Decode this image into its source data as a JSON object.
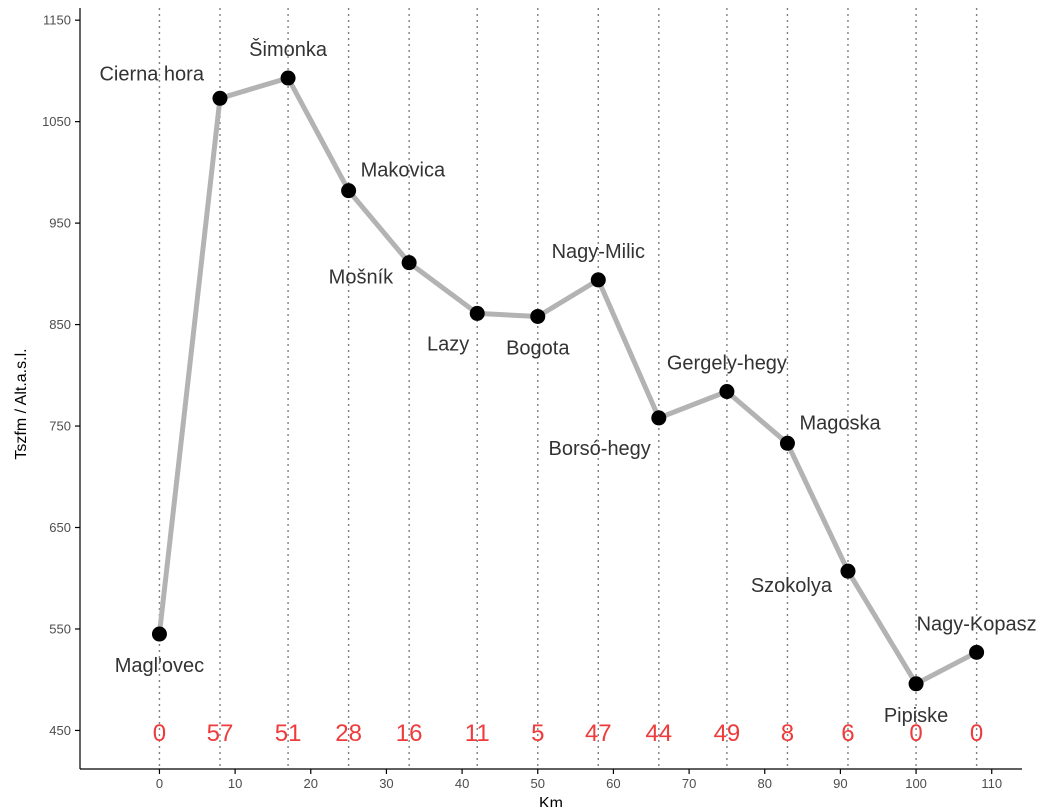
{
  "chart_data": {
    "type": "line",
    "xlabel": "Km",
    "ylabel": "Tszfm / Alt.a.s.l.",
    "xlim": [
      -10.5,
      114
    ],
    "ylim": [
      412,
      1162
    ],
    "x_ticks": [
      0,
      10,
      20,
      30,
      40,
      50,
      60,
      70,
      80,
      90,
      100,
      110
    ],
    "y_ticks": [
      450,
      550,
      650,
      750,
      850,
      950,
      1050,
      1150
    ],
    "grid": "vertical dotted lines at each point",
    "colors": {
      "line": "#b3b3b3",
      "point": "#000000",
      "count": "#ee3b3b",
      "label": "#333333"
    },
    "points": [
      {
        "label": "Magl'ovec",
        "x": 0,
        "y": 545,
        "count": "0",
        "label_pos": "below"
      },
      {
        "label": "Cierna hora",
        "x": 8,
        "y": 1073,
        "count": "57",
        "label_pos": "above-left"
      },
      {
        "label": "Šimonka",
        "x": 17,
        "y": 1093,
        "count": "51",
        "label_pos": "above"
      },
      {
        "label": "Makovica",
        "x": 25,
        "y": 982,
        "count": "28",
        "label_pos": "above-right"
      },
      {
        "label": "Mošník",
        "x": 33,
        "y": 911,
        "count": "16",
        "label_pos": "left"
      },
      {
        "label": "Lazy",
        "x": 42,
        "y": 861,
        "count": "11",
        "label_pos": "below-left"
      },
      {
        "label": "Bogota",
        "x": 50,
        "y": 858,
        "count": "5",
        "label_pos": "below"
      },
      {
        "label": "Nagy-Milic",
        "x": 58,
        "y": 894,
        "count": "47",
        "label_pos": "above"
      },
      {
        "label": "Borsó-hegy",
        "x": 66,
        "y": 758,
        "count": "44",
        "label_pos": "below-left"
      },
      {
        "label": "Gergely-hegy",
        "x": 75,
        "y": 784,
        "count": "49",
        "label_pos": "above"
      },
      {
        "label": "Magoska",
        "x": 83,
        "y": 733,
        "count": "8",
        "label_pos": "above-right"
      },
      {
        "label": "Szokolya",
        "x": 91,
        "y": 607,
        "count": "6",
        "label_pos": "left"
      },
      {
        "label": "Pipiske",
        "x": 100,
        "y": 496,
        "count": "0",
        "label_pos": "below"
      },
      {
        "label": "Nagy-Kopasz",
        "x": 108,
        "y": 527,
        "count": "0",
        "label_pos": "above"
      }
    ]
  }
}
